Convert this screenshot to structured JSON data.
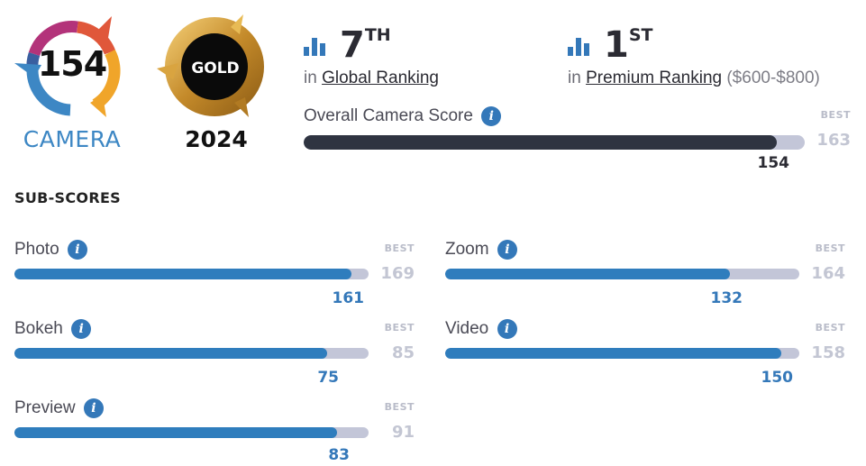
{
  "badge": {
    "score": "154",
    "category": "CAMERA"
  },
  "award": {
    "label": "GOLD",
    "year": "2024"
  },
  "rankings": {
    "global": {
      "rank": "7",
      "suffix": "TH",
      "prefix": "in",
      "link": "Global Ranking"
    },
    "premium": {
      "rank": "1",
      "suffix": "ST",
      "prefix": "in",
      "link": "Premium Ranking",
      "range": "($600-$800)"
    }
  },
  "overall": {
    "label": "Overall Camera Score",
    "best_label": "BEST",
    "best": 163,
    "score": 154
  },
  "subscores": {
    "heading": "SUB-SCORES",
    "items": [
      {
        "label": "Photo",
        "best_label": "BEST",
        "best": 169,
        "score": 161
      },
      {
        "label": "Zoom",
        "best_label": "BEST",
        "best": 164,
        "score": 132
      },
      {
        "label": "Bokeh",
        "best_label": "BEST",
        "best": 85,
        "score": 75
      },
      {
        "label": "Video",
        "best_label": "BEST",
        "best": 158,
        "score": 150
      },
      {
        "label": "Preview",
        "best_label": "BEST",
        "best": 91,
        "score": 83
      }
    ]
  },
  "info_icon_glyph": "i",
  "colors": {
    "accent_blue": "#2f7dbd",
    "overall_bar": "#2f3441",
    "track": "#c3c6d8",
    "gold": "#c9962e"
  }
}
